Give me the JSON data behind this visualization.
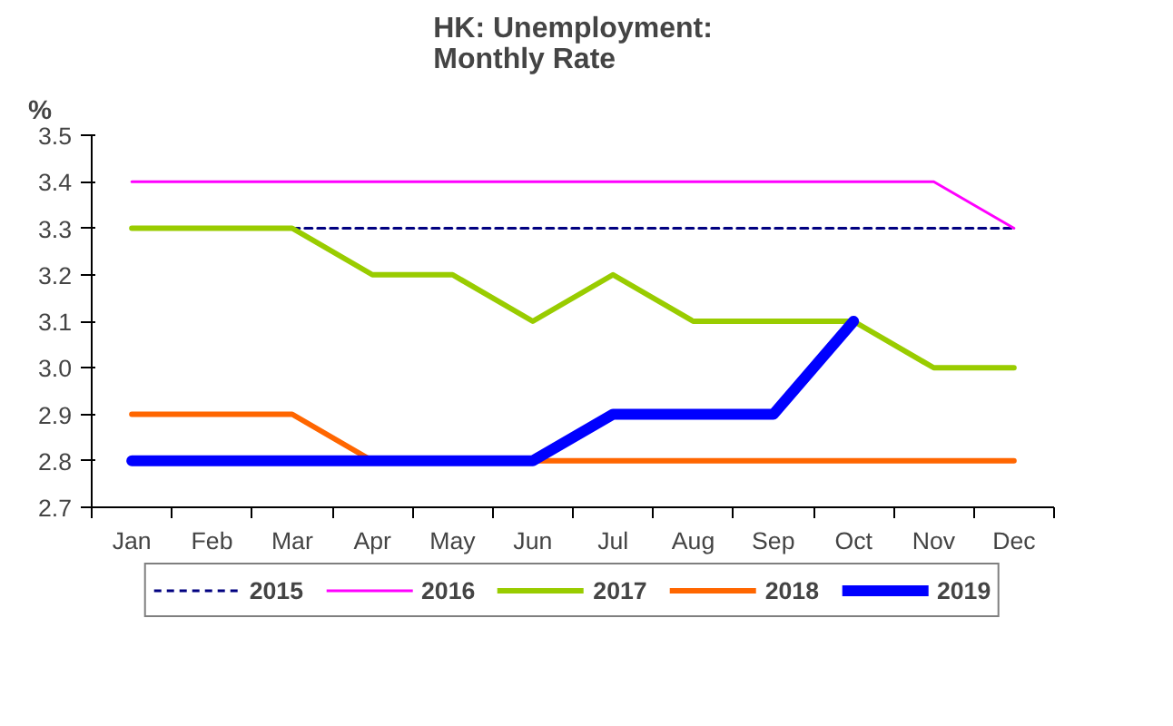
{
  "chart_data": {
    "type": "line",
    "title": "HK: Unemployment:\nMonthly Rate",
    "ylabel": "%",
    "categories": [
      "Jan",
      "Feb",
      "Mar",
      "Apr",
      "May",
      "Jun",
      "Jul",
      "Aug",
      "Sep",
      "Oct",
      "Nov",
      "Dec"
    ],
    "ylim": [
      2.7,
      3.5
    ],
    "yticks": [
      {
        "value": 2.7,
        "label": "2.7"
      },
      {
        "value": 2.8,
        "label": "2.8"
      },
      {
        "value": 2.9,
        "label": "2.9"
      },
      {
        "value": 3.0,
        "label": "3.0"
      },
      {
        "value": 3.1,
        "label": "3.1"
      },
      {
        "value": 3.2,
        "label": "3.2"
      },
      {
        "value": 3.3,
        "label": "3.3"
      },
      {
        "value": 3.4,
        "label": "3.4"
      },
      {
        "value": 3.5,
        "label": "3.5"
      }
    ],
    "grid": false,
    "legend": "bottom",
    "marker": "none",
    "series": [
      {
        "name": "2015",
        "color": "#000080",
        "line_style": "dashed",
        "values": [
          null,
          null,
          3.3,
          3.3,
          3.3,
          3.3,
          3.3,
          3.3,
          3.3,
          3.3,
          3.3,
          3.3
        ]
      },
      {
        "name": "2016",
        "color": "#ff00ff",
        "line_style": "solid",
        "values": [
          3.4,
          3.4,
          3.4,
          3.4,
          3.4,
          3.4,
          3.4,
          3.4,
          3.4,
          3.4,
          3.4,
          3.3
        ]
      },
      {
        "name": "2017",
        "color": "#99cc00",
        "line_style": "solid",
        "values": [
          3.3,
          3.3,
          3.3,
          3.2,
          3.2,
          3.1,
          3.2,
          3.1,
          3.1,
          3.1,
          3.0,
          3.0
        ]
      },
      {
        "name": "2018",
        "color": "#ff6600",
        "line_style": "solid",
        "values": [
          2.9,
          2.9,
          2.9,
          2.8,
          null,
          2.8,
          2.8,
          2.8,
          2.8,
          2.8,
          2.8,
          2.8
        ]
      },
      {
        "name": "2019",
        "color": "#0000ff",
        "line_style": "solid",
        "values": [
          2.8,
          2.8,
          2.8,
          2.8,
          2.8,
          2.8,
          2.9,
          2.9,
          2.9,
          3.1,
          null,
          null
        ]
      }
    ]
  }
}
